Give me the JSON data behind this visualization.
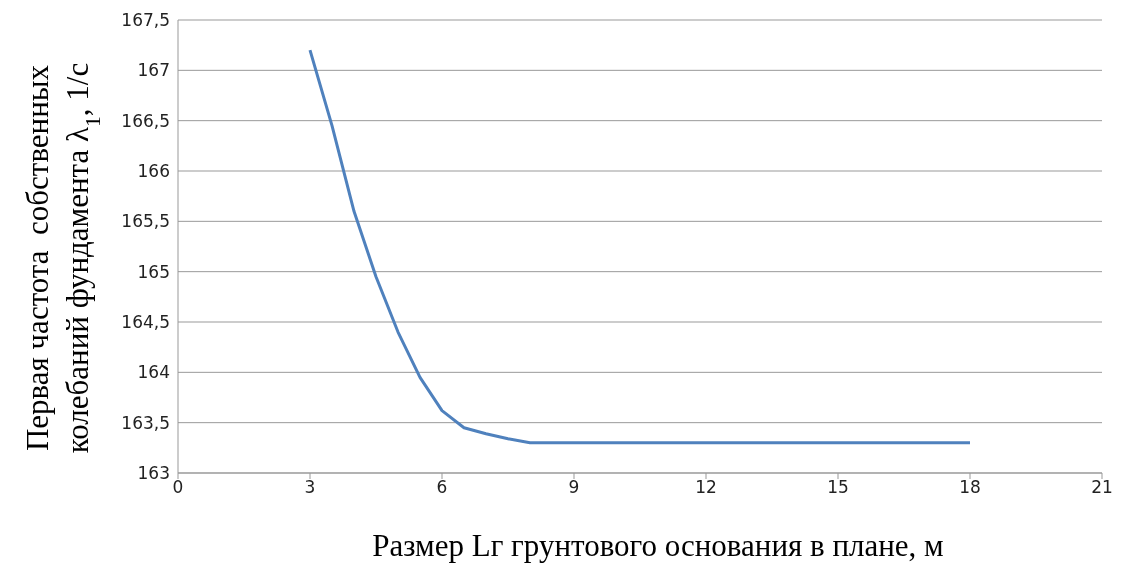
{
  "chart_data": {
    "type": "line",
    "xlabel": "Размер Lг грунтового основания в плане, м",
    "ylabel": "Первая частота  собственных\nколебаний фундамента λ$_{1}$, 1/с",
    "x": [
      3,
      3.5,
      4,
      4.5,
      5,
      5.5,
      6,
      6.5,
      7,
      7.5,
      8,
      9,
      10,
      12,
      15,
      18
    ],
    "series": [
      {
        "color": "#4f81bd",
        "values": [
          167.2,
          166.45,
          165.6,
          164.95,
          164.4,
          163.95,
          163.62,
          163.45,
          163.39,
          163.34,
          163.3,
          163.3,
          163.3,
          163.3,
          163.3,
          163.3
        ]
      }
    ],
    "xlim": [
      0,
      21
    ],
    "xticks": [
      0,
      3,
      6,
      9,
      12,
      15,
      18,
      21
    ],
    "ylim": [
      163,
      167.5
    ],
    "yticks": [
      163,
      {
        "value": 163.5,
        "label": "163,5"
      },
      164,
      {
        "value": 164.5,
        "label": "164,5"
      },
      165,
      {
        "value": 165.5,
        "label": "165,5"
      },
      166,
      {
        "value": 166.5,
        "label": "166,5"
      },
      167,
      {
        "value": 167.5,
        "label": "167,5"
      }
    ],
    "grid": "y",
    "legend": false,
    "marker": "none",
    "line_style": "solid"
  }
}
